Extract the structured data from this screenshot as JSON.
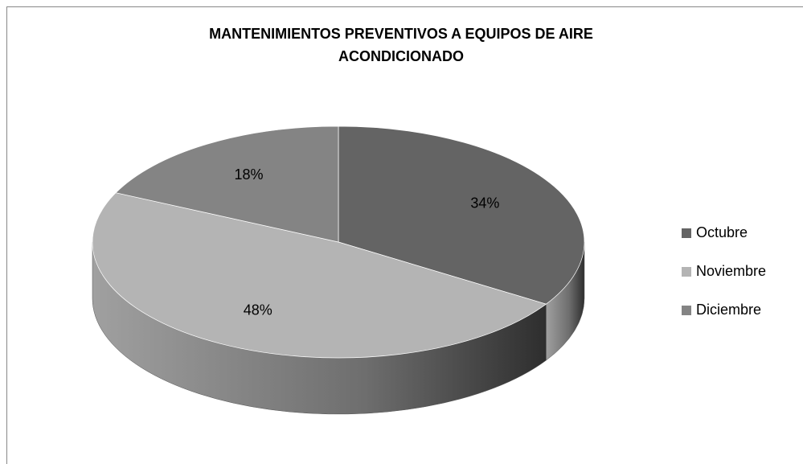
{
  "chart_data": {
    "type": "pie3d",
    "title": "MANTENIMIENTOS PREVENTIVOS A EQUIPOS DE AIRE ACONDICIONADO",
    "categories": [
      "Octubre",
      "Noviembre",
      "Diciembre"
    ],
    "values": [
      34,
      48,
      18
    ],
    "value_labels": [
      "34%",
      "48%",
      "18%"
    ],
    "colors": [
      "#646464",
      "#b4b4b4",
      "#848484"
    ],
    "legend": "right"
  }
}
